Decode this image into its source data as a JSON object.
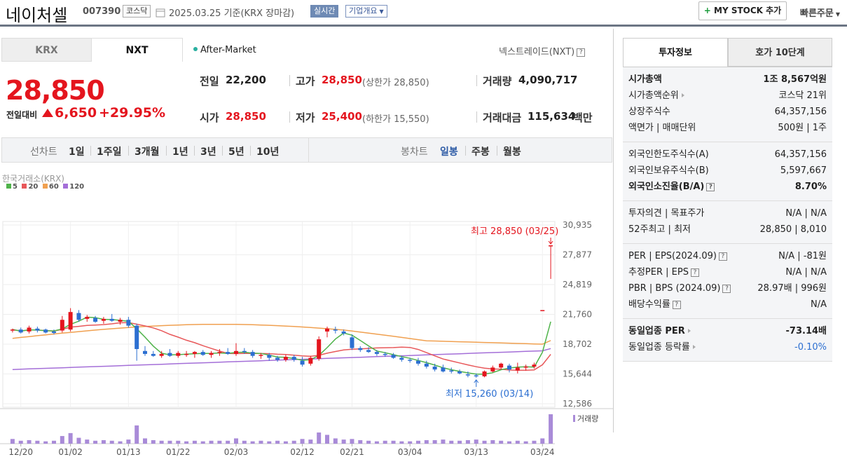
{
  "header": {
    "name": "네이처셀",
    "code": "007390",
    "market_badge": "코스닥",
    "date": "2025.03.25  기준(KRX 장마감)",
    "realtime": "실시간",
    "overview": "기업개요",
    "mystock": "MY STOCK 추가",
    "quick_order": "빠른주문"
  },
  "tabs": {
    "krx": "KRX",
    "nxt": "NXT"
  },
  "after_market": "After-Market",
  "nxt_label": "넥스트레이드(NXT)",
  "price": {
    "current": "28,850",
    "change_label": "전일대비",
    "change": "6,650",
    "change_pct": "+29.95%"
  },
  "info": {
    "prev_close_label": "전일",
    "prev_close": "22,200",
    "high_label": "고가",
    "high": "28,850",
    "upper_limit": "(상한가 28,850)",
    "volume_label": "거래량",
    "volume": "4,090,717",
    "open_label": "시가",
    "open": "28,850",
    "low_label": "저가",
    "low": "25,400",
    "lower_limit": "(하한가 15,550)",
    "amount_label": "거래대금",
    "amount": "115,634",
    "amount_unit": "백만"
  },
  "period_bar": {
    "line_label": "선차트",
    "line_periods": [
      "1일",
      "1주일",
      "3개월",
      "1년",
      "3년",
      "5년",
      "10년"
    ],
    "candle_label": "봉차트",
    "candle_periods": [
      "일봉",
      "주봉",
      "월봉"
    ],
    "active_candle": "일봉"
  },
  "chart_source": "한국거래소(KRX)",
  "colors": {
    "up": "#e4151e",
    "down": "#2c6fd1",
    "ma5": "#4fb34a",
    "ma20": "#e8585a",
    "ma60": "#f0a050",
    "ma120": "#a46fd8",
    "volume": "#a98bd8"
  },
  "chart_data": {
    "type": "candlestick",
    "legend": [
      "5",
      "20",
      "60",
      "120"
    ],
    "y_ticks": [
      "30,935",
      "27,877",
      "24,819",
      "21,760",
      "18,702",
      "15,644",
      "12,586"
    ],
    "ylim": [
      12586,
      30935
    ],
    "x_ticks": [
      "12/20",
      "01/02",
      "01/13",
      "01/22",
      "02/03",
      "02/12",
      "02/21",
      "03/04",
      "03/13",
      "03/24"
    ],
    "high_annotation": "최고 28,850 (03/25)",
    "low_annotation": "최저 15,260 (03/14)",
    "volume_label": "거래량",
    "candles": [
      [
        20100,
        20300,
        19900,
        20200
      ],
      [
        20200,
        20400,
        19800,
        19900
      ],
      [
        20000,
        20600,
        19800,
        20400
      ],
      [
        20300,
        20500,
        19900,
        20100
      ],
      [
        20200,
        20300,
        19800,
        19900
      ],
      [
        20000,
        20200,
        19700,
        19850
      ],
      [
        20100,
        21600,
        19900,
        21200
      ],
      [
        20200,
        22400,
        20000,
        22000
      ],
      [
        21900,
        22200,
        21000,
        21200
      ],
      [
        21300,
        21700,
        21000,
        21500
      ],
      [
        21400,
        21600,
        20900,
        21000
      ],
      [
        21100,
        21500,
        20800,
        21300
      ],
      [
        21300,
        21800,
        21000,
        21100
      ],
      [
        21000,
        21400,
        20700,
        21200
      ],
      [
        21200,
        21500,
        20400,
        20600
      ],
      [
        20600,
        20800,
        17000,
        18200
      ],
      [
        18000,
        18500,
        17500,
        17700
      ],
      [
        17700,
        18000,
        17400,
        17500
      ],
      [
        17500,
        18000,
        17300,
        17700
      ],
      [
        17800,
        18200,
        17400,
        17500
      ],
      [
        17500,
        18000,
        17300,
        17800
      ],
      [
        17600,
        18000,
        17400,
        17700
      ],
      [
        17700,
        18000,
        17300,
        17900
      ],
      [
        17900,
        18100,
        17500,
        17600
      ],
      [
        17600,
        18000,
        17300,
        17800
      ],
      [
        17800,
        18200,
        17500,
        17900
      ],
      [
        17900,
        18300,
        17600,
        17700
      ],
      [
        17700,
        18800,
        17500,
        18000
      ],
      [
        18000,
        18300,
        17700,
        17900
      ],
      [
        17900,
        18100,
        17300,
        17500
      ],
      [
        17500,
        17800,
        17200,
        17600
      ],
      [
        17600,
        17800,
        17000,
        17300
      ],
      [
        17300,
        17500,
        16900,
        17100
      ],
      [
        17100,
        17600,
        16900,
        17400
      ],
      [
        17400,
        17600,
        16900,
        17100
      ],
      [
        17000,
        17400,
        16400,
        16600
      ],
      [
        16700,
        17500,
        16500,
        17300
      ],
      [
        17200,
        19500,
        17000,
        19200
      ],
      [
        20000,
        20500,
        19400,
        20300
      ],
      [
        20200,
        20500,
        19800,
        20100
      ],
      [
        20000,
        20200,
        19600,
        19800
      ],
      [
        19400,
        19700,
        18100,
        18300
      ],
      [
        18300,
        18500,
        17900,
        18100
      ],
      [
        18100,
        18400,
        17800,
        17900
      ],
      [
        17900,
        18100,
        17500,
        17700
      ],
      [
        17700,
        17900,
        17400,
        17600
      ],
      [
        17600,
        17800,
        17200,
        17300
      ],
      [
        17300,
        17500,
        16900,
        17100
      ],
      [
        17100,
        17300,
        16800,
        17000
      ],
      [
        17000,
        17300,
        16500,
        16700
      ],
      [
        16700,
        17000,
        16200,
        16400
      ],
      [
        16400,
        16700,
        15900,
        16100
      ],
      [
        16300,
        16600,
        15800,
        15900
      ],
      [
        16000,
        16300,
        15700,
        15900
      ],
      [
        15900,
        16100,
        15600,
        15700
      ],
      [
        15600,
        15900,
        15300,
        15500
      ],
      [
        15500,
        15700,
        15260,
        15400
      ],
      [
        15400,
        16000,
        15300,
        15900
      ],
      [
        15900,
        16500,
        15800,
        16300
      ],
      [
        16300,
        16800,
        16100,
        16700
      ],
      [
        16500,
        16700,
        15800,
        16100
      ],
      [
        16000,
        16800,
        15700,
        16300
      ],
      [
        16300,
        16600,
        16000,
        16400
      ],
      [
        16400,
        16800,
        16200,
        16600
      ],
      [
        22200,
        22200,
        22200,
        22200
      ],
      [
        28850,
        28850,
        25400,
        28850
      ]
    ],
    "volumes": [
      0.16,
      0.1,
      0.12,
      0.1,
      0.08,
      0.1,
      0.26,
      0.36,
      0.2,
      0.14,
      0.1,
      0.12,
      0.1,
      0.08,
      0.14,
      0.62,
      0.18,
      0.12,
      0.1,
      0.1,
      0.1,
      0.08,
      0.1,
      0.08,
      0.1,
      0.1,
      0.1,
      0.18,
      0.1,
      0.08,
      0.1,
      0.08,
      0.1,
      0.08,
      0.1,
      0.16,
      0.14,
      0.38,
      0.3,
      0.18,
      0.14,
      0.16,
      0.12,
      0.1,
      0.08,
      0.1,
      0.1,
      0.08,
      0.08,
      0.1,
      0.12,
      0.12,
      0.14,
      0.1,
      0.1,
      0.12,
      0.14,
      0.1,
      0.12,
      0.1,
      0.08,
      0.1,
      0.08,
      0.1,
      0.18,
      1.0
    ]
  },
  "right": {
    "tab_invest": "투자정보",
    "tab_ask": "호가 10단계",
    "groups": [
      [
        {
          "k": "시가총액",
          "v": "1조 8,567억원",
          "bold": true
        },
        {
          "k": "시가총액순위",
          "v": "코스닥 21위",
          "arrow": true
        },
        {
          "k": "상장주식수",
          "v": "64,357,156"
        },
        {
          "k": "액면가 | 매매단위",
          "v": "500원 | 1주"
        }
      ],
      [
        {
          "k": "외국인한도주식수(A)",
          "v": "64,357,156"
        },
        {
          "k": "외국인보유주식수(B)",
          "v": "5,597,667"
        },
        {
          "k": "외국인소진율(B/A)",
          "v": "8.70%",
          "bold": true,
          "q": true
        }
      ],
      [
        {
          "k": "투자의견 | 목표주가",
          "v": "N/A | N/A"
        },
        {
          "k": "52주최고 | 최저",
          "v": "28,850 | 8,010"
        }
      ],
      [
        {
          "k": "PER | EPS(2024.09)",
          "v": "N/A | -81원",
          "q": true
        },
        {
          "k": "추정PER | EPS",
          "v": "N/A | N/A",
          "q": true
        },
        {
          "k": "PBR | BPS (2024.09)",
          "v": "28.97배 | 996원",
          "q": true
        },
        {
          "k": "배당수익률",
          "v": "N/A",
          "q": true
        }
      ],
      [
        {
          "k": "동일업종 PER",
          "v": "-73.14배",
          "bold": true,
          "arrow": true
        },
        {
          "k": "동일업종 등락률",
          "v": "-0.10%",
          "arrow": true,
          "blue": true
        }
      ]
    ]
  }
}
